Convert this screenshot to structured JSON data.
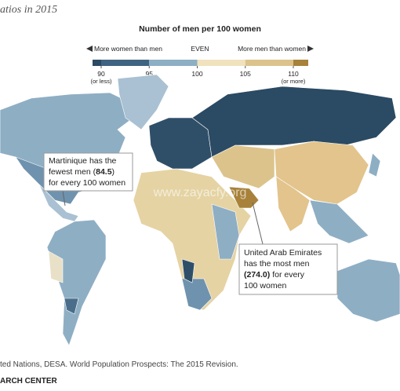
{
  "title": "atios in 2015",
  "legend": {
    "title": "Number of men per 100 women",
    "left_label": "More women than men",
    "center_label": "EVEN",
    "right_label": "More men than women",
    "ticks": [
      90,
      95,
      100,
      105,
      110
    ],
    "low_note": "(or less)",
    "high_note": "(or more)",
    "colors": [
      "#2b4a63",
      "#3f6481",
      "#8eaec4",
      "#efe2bd",
      "#dcc38c",
      "#a8823a"
    ]
  },
  "annotations": [
    {
      "line1": "Martinique has the",
      "before": "fewest men (",
      "value": "84.5",
      "after": ")",
      "line3": "for every 100 women"
    },
    {
      "line1": "United Arab Emirates",
      "line2": "has the most men",
      "value": "(274.0)",
      "after": " for every",
      "line4": "100 women"
    }
  ],
  "watermark": "www.zayacfy.org",
  "source": "ted Nations, DESA. World Population Prospects: The 2015 Revision.",
  "credit": "ARCH CENTER"
}
